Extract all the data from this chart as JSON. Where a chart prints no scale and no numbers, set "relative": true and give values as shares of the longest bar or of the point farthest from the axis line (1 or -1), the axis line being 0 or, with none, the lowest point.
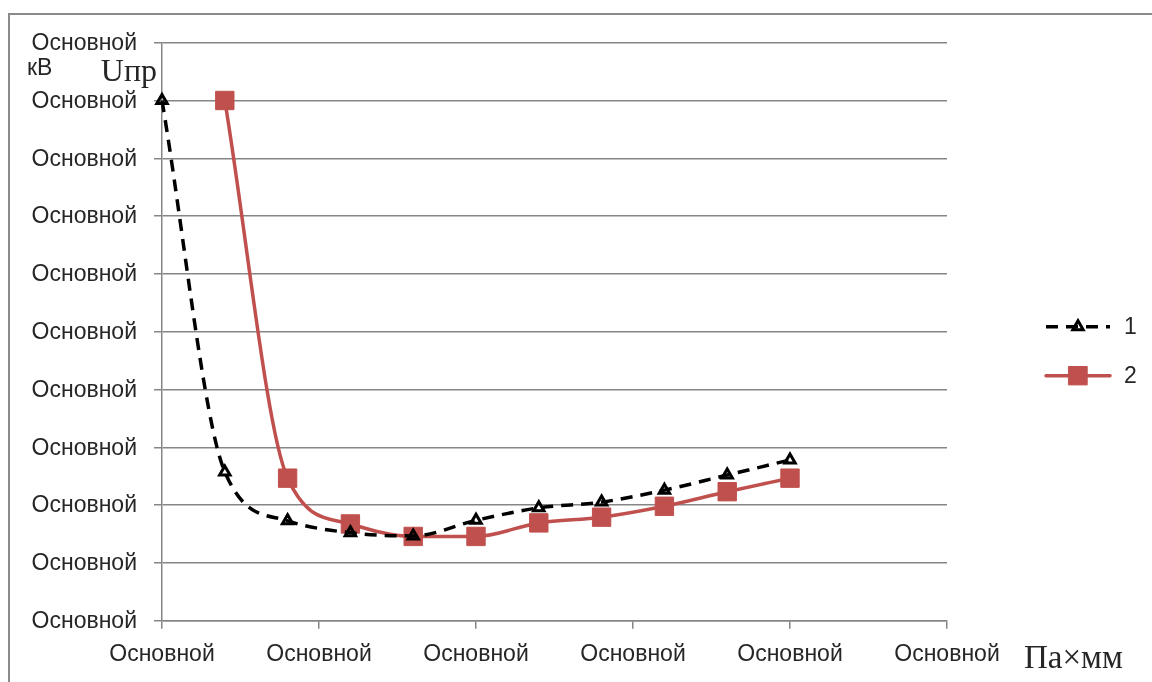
{
  "chart_data": {
    "type": "line",
    "relative": true,
    "xlabel": "Па×мм",
    "ylabel": "Uпр",
    "annotations": [
      "кВ",
      "Основной",
      "Основной",
      "Основной",
      "Основной",
      "Основной",
      "Основной",
      "Основной",
      "Основной",
      "Основной",
      "Основной",
      "Основной"
    ],
    "categories": [
      "Основной",
      null,
      null,
      null,
      null,
      "Основной",
      null,
      null,
      null,
      null,
      "Основной",
      null,
      null,
      null,
      null,
      "Основной",
      null,
      null,
      null,
      null,
      "Основной",
      null,
      null,
      null,
      null,
      "Основной"
    ],
    "grid": "y",
    "legend": "right",
    "series": [
      {
        "name": "1",
        "color": "#000000",
        "marker": "triangle",
        "line_style": "dashed",
        "values": [
          1,
          null,
          0.286,
          null,
          0.192,
          null,
          0.169,
          null,
          0.163,
          null,
          0.193,
          null,
          0.217,
          null,
          0.228,
          null,
          0.251,
          null,
          0.28,
          null,
          0.309,
          null,
          null,
          null,
          null,
          null
        ]
      },
      {
        "name": "2",
        "color": "#c0504d",
        "marker": "square",
        "line_style": "solid",
        "values": [
          null,
          null,
          1,
          null,
          0.274,
          null,
          0.186,
          null,
          0.162,
          null,
          0.162,
          null,
          0.188,
          null,
          0.199,
          null,
          0.22,
          null,
          0.248,
          null,
          0.274,
          null,
          null,
          null,
          null,
          null
        ]
      }
    ]
  }
}
